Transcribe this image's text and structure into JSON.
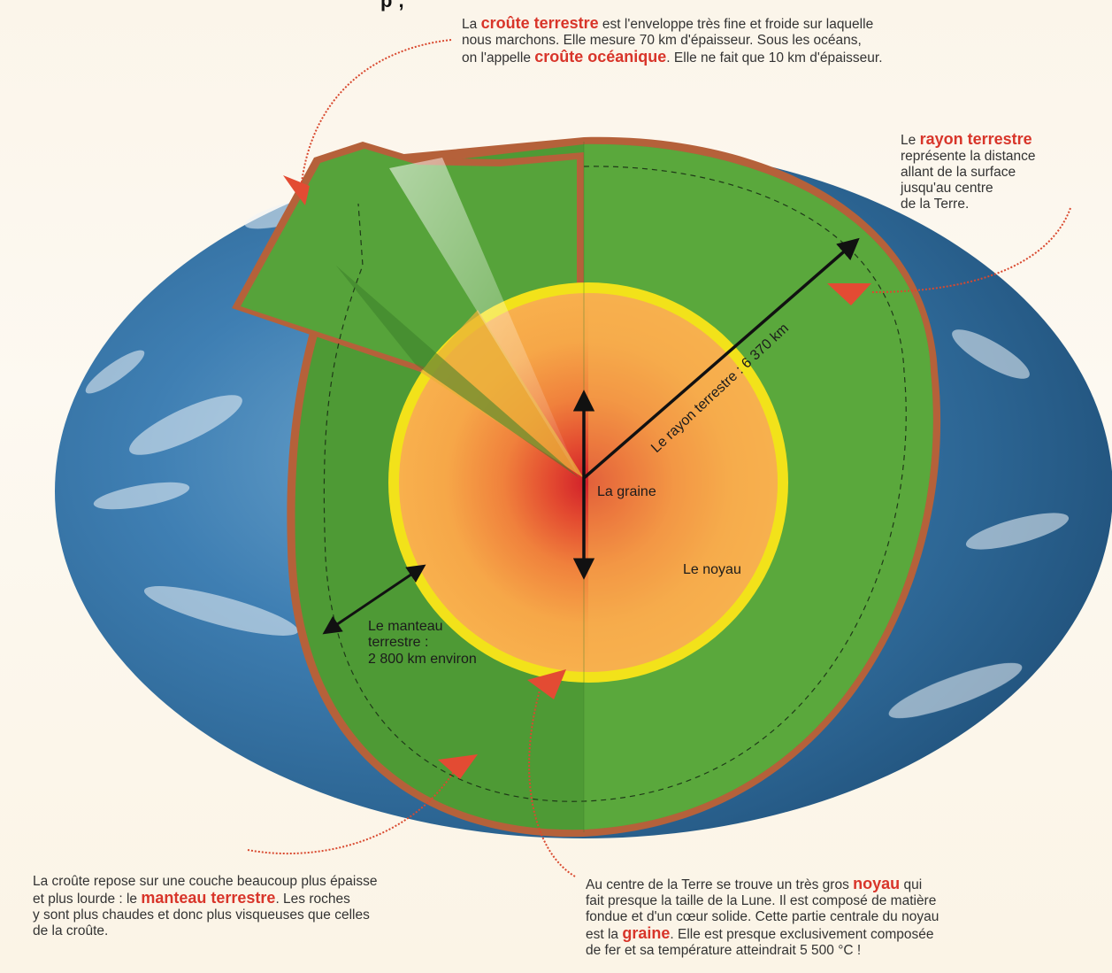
{
  "top_fragment": "p                                              ,",
  "crust": {
    "pre": "La ",
    "term1": "croûte terrestre",
    "mid1": " est l'enveloppe très fine et froide sur laquelle",
    "line2": "nous marchons. Elle mesure 70 km d'épaisseur. Sous les océans,",
    "line3_pre": "on l'appelle ",
    "term2": "croûte océanique",
    "line3_post": ". Elle ne fait que 10 km d'épaisseur."
  },
  "radius_note": {
    "pre": "Le ",
    "term": "rayon terrestre",
    "line2": "représente la distance",
    "line3": "allant de la surface",
    "line4": "jusqu'au centre",
    "line5": "de la Terre."
  },
  "mantle_note": {
    "line1": "La croûte repose sur une couche beaucoup plus épaisse",
    "line2_pre": "et plus lourde : le ",
    "term": "manteau terrestre",
    "line2_post": ". Les roches",
    "line3": "y sont plus chaudes et donc plus visqueuses que celles",
    "line4": "de la croûte."
  },
  "core_note": {
    "line1_pre": "Au centre de la Terre se trouve un très gros ",
    "term1": "noyau",
    "line1_post": " qui",
    "line2": "fait presque la taille de la Lune. Il est composé de matière",
    "line3": "fondue et d'un cœur solide. Cette partie centrale du noyau",
    "line4_pre": "est la ",
    "term2": "graine",
    "line4_post": ". Elle est presque exclusivement composée",
    "line5": "de fer et sa température atteindrait 5 500 °C !"
  },
  "labels": {
    "radius": "Le rayon terrestre : 6 370 km",
    "graine": "La graine",
    "noyau": "Le noyau",
    "mantle1": "Le manteau",
    "mantle2": "terrestre :",
    "mantle3": "2 800 km environ"
  },
  "colors": {
    "mantle": "#4e9a35",
    "mantle_light": "#5aa83c",
    "crust": "#b5613a",
    "core_rim": "#f2e21a",
    "core": "#f5a043",
    "inner_core": "#d9262a",
    "ocean": "#2f6fa3",
    "arrow": "#e34b33",
    "highlight_text": "#d8352a"
  }
}
